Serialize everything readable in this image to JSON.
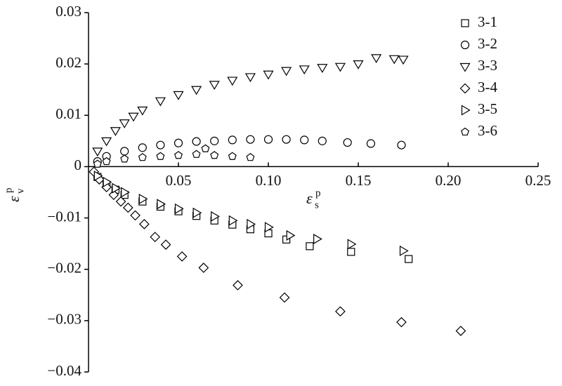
{
  "chart_data": {
    "type": "scatter",
    "xlabel": "ε",
    "xlabel_sub": "s",
    "xlabel_sup": "p",
    "ylabel": "ε",
    "ylabel_sub": "v",
    "ylabel_sup": "p",
    "xlim": [
      0,
      0.25
    ],
    "ylim": [
      -0.04,
      0.03
    ],
    "xticks": [
      0.05,
      {
        "value": 0.1,
        "label": "0.10"
      },
      0.15,
      {
        "value": 0.2,
        "label": "0.20"
      },
      0.25
    ],
    "yticks": [
      0.03,
      0.02,
      0.01,
      0,
      {
        "value": -0.01,
        "label": "−0.01"
      },
      {
        "value": -0.02,
        "label": "−0.02"
      },
      {
        "value": -0.03,
        "label": "−0.03"
      },
      {
        "value": -0.04,
        "label": "−0.04"
      }
    ],
    "legend": "upper right",
    "series": [
      {
        "name": "3-1",
        "marker": "square",
        "color": "#000000",
        "x": [
          0.005,
          0.01,
          0.015,
          0.02,
          0.03,
          0.04,
          0.05,
          0.06,
          0.07,
          0.08,
          0.09,
          0.1,
          0.11,
          0.123,
          0.146,
          0.178
        ],
        "values": [
          -0.002,
          -0.0035,
          -0.0045,
          -0.0055,
          -0.0068,
          -0.0078,
          -0.0087,
          -0.0096,
          -0.0105,
          -0.0113,
          -0.0122,
          -0.013,
          -0.0142,
          -0.0155,
          -0.0166,
          -0.018
        ]
      },
      {
        "name": "3-2",
        "marker": "circle",
        "color": "#000000",
        "x": [
          0.005,
          0.01,
          0.02,
          0.03,
          0.04,
          0.05,
          0.06,
          0.07,
          0.08,
          0.09,
          0.1,
          0.11,
          0.12,
          0.13,
          0.144,
          0.157,
          0.174
        ],
        "values": [
          0.001,
          0.002,
          0.003,
          0.0037,
          0.0042,
          0.0046,
          0.0049,
          0.005,
          0.0052,
          0.0053,
          0.0053,
          0.0053,
          0.0052,
          0.005,
          0.0047,
          0.0045,
          0.0042
        ]
      },
      {
        "name": "3-3",
        "marker": "triangle-down",
        "color": "#000000",
        "x": [
          0.005,
          0.01,
          0.015,
          0.02,
          0.025,
          0.03,
          0.04,
          0.05,
          0.06,
          0.07,
          0.08,
          0.09,
          0.1,
          0.11,
          0.12,
          0.13,
          0.14,
          0.15,
          0.16,
          0.17,
          0.175
        ],
        "values": [
          0.003,
          0.005,
          0.007,
          0.0085,
          0.0098,
          0.011,
          0.0128,
          0.014,
          0.015,
          0.016,
          0.0168,
          0.0175,
          0.018,
          0.0187,
          0.019,
          0.0193,
          0.0195,
          0.02,
          0.0212,
          0.021,
          0.0209
        ]
      },
      {
        "name": "3-4",
        "marker": "diamond",
        "color": "#000000",
        "x": [
          0.003,
          0.006,
          0.01,
          0.014,
          0.018,
          0.022,
          0.026,
          0.031,
          0.037,
          0.043,
          0.052,
          0.064,
          0.083,
          0.109,
          0.14,
          0.174,
          0.207
        ],
        "values": [
          -0.001,
          -0.0025,
          -0.004,
          -0.0055,
          -0.0068,
          -0.008,
          -0.0095,
          -0.0112,
          -0.0137,
          -0.0152,
          -0.0175,
          -0.0197,
          -0.0231,
          -0.0255,
          -0.0282,
          -0.0303,
          -0.032
        ]
      },
      {
        "name": "3-5",
        "marker": "triangle-right",
        "color": "#000000",
        "x": [
          0.005,
          0.01,
          0.015,
          0.02,
          0.03,
          0.04,
          0.05,
          0.06,
          0.07,
          0.08,
          0.09,
          0.1,
          0.112,
          0.127,
          0.146,
          0.175
        ],
        "values": [
          -0.0018,
          -0.003,
          -0.0042,
          -0.005,
          -0.0063,
          -0.0073,
          -0.0082,
          -0.009,
          -0.0097,
          -0.0105,
          -0.0112,
          -0.0118,
          -0.0134,
          -0.0141,
          -0.0151,
          -0.0164
        ]
      },
      {
        "name": "3-6",
        "marker": "pentagon",
        "color": "#000000",
        "x": [
          0.005,
          0.01,
          0.02,
          0.03,
          0.04,
          0.05,
          0.06,
          0.065,
          0.07,
          0.08,
          0.09
        ],
        "values": [
          0.0005,
          0.001,
          0.0015,
          0.0018,
          0.002,
          0.0022,
          0.0024,
          0.0035,
          0.0022,
          0.002,
          0.0018
        ]
      }
    ]
  }
}
